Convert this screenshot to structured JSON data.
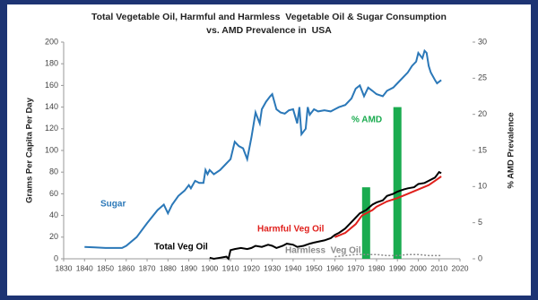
{
  "chart_data": {
    "type": "line",
    "title": "Total Vegetable Oil, Harmful and Harmless  Vegetable Oil & Sugar Consumption",
    "subtitle": "vs. AMD Prevalence in  USA",
    "y_label": "Grams Per Capita Per Day",
    "y2_label": "% AMD Prevalence",
    "xlim": [
      1830,
      2020
    ],
    "xticks": [
      1830,
      1840,
      1850,
      1860,
      1870,
      1880,
      1890,
      1900,
      1910,
      1920,
      1930,
      1940,
      1950,
      1960,
      1970,
      1980,
      1990,
      2000,
      2010,
      2020
    ],
    "ylim": [
      0,
      200
    ],
    "yticks": [
      0,
      20,
      40,
      60,
      80,
      100,
      120,
      140,
      160,
      180,
      200
    ],
    "y2lim": [
      0,
      30
    ],
    "y2ticks": [
      0,
      5,
      10,
      15,
      20,
      25,
      30
    ],
    "series": [
      {
        "name": "Sugar",
        "color": "#2b78b8",
        "x": [
          1840,
          1845,
          1850,
          1855,
          1858,
          1860,
          1865,
          1870,
          1875,
          1878,
          1880,
          1882,
          1885,
          1888,
          1890,
          1891,
          1893,
          1895,
          1897,
          1898,
          1899,
          1900,
          1902,
          1905,
          1908,
          1910,
          1912,
          1914,
          1916,
          1918,
          1920,
          1922,
          1924,
          1925,
          1927,
          1929,
          1930,
          1932,
          1934,
          1936,
          1938,
          1940,
          1942,
          1943,
          1944,
          1946,
          1947,
          1948,
          1950,
          1952,
          1955,
          1958,
          1960,
          1962,
          1965,
          1968,
          1970,
          1972,
          1974,
          1976,
          1978,
          1980,
          1983,
          1985,
          1988,
          1990,
          1993,
          1995,
          1997,
          1999,
          2000,
          2002,
          2003,
          2004,
          2005,
          2006,
          2008,
          2009,
          2011
        ],
        "values": [
          11,
          10.5,
          10,
          10,
          10,
          12,
          20,
          33,
          45,
          50,
          42,
          50,
          58,
          63,
          68,
          65,
          72,
          70,
          70,
          82,
          78,
          82,
          78,
          82,
          88,
          92,
          108,
          104,
          102,
          92,
          112,
          135,
          125,
          138,
          145,
          150,
          152,
          138,
          135,
          134,
          137,
          138,
          125,
          140,
          115,
          120,
          140,
          133,
          138,
          136,
          137,
          136,
          138,
          140,
          142,
          148,
          157,
          160,
          150,
          158,
          155,
          152,
          150,
          155,
          158,
          162,
          168,
          172,
          178,
          182,
          190,
          185,
          192,
          190,
          178,
          172,
          165,
          162,
          165
        ]
      },
      {
        "name": "Total Veg Oil",
        "color": "#000000",
        "x": [
          1900,
          1902,
          1905,
          1908,
          1909,
          1910,
          1912,
          1915,
          1918,
          1920,
          1922,
          1925,
          1928,
          1930,
          1932,
          1935,
          1937,
          1940,
          1942,
          1945,
          1948,
          1950,
          1955,
          1958,
          1960,
          1962,
          1965,
          1968,
          1970,
          1972,
          1975,
          1978,
          1980,
          1983,
          1985,
          1988,
          1990,
          1993,
          1995,
          1998,
          2000,
          2003,
          2005,
          2008,
          2010,
          2011
        ],
        "values": [
          1,
          0,
          1,
          2,
          0,
          8,
          9,
          10,
          9,
          10,
          12,
          11,
          13,
          12,
          10,
          12,
          14,
          13,
          11,
          12,
          14,
          15,
          17,
          19,
          22,
          24,
          28,
          34,
          38,
          42,
          45,
          50,
          52,
          54,
          58,
          60,
          62,
          64,
          65,
          66,
          69,
          70,
          72,
          75,
          80,
          79
        ]
      },
      {
        "name": "Harmful Veg Oil",
        "color": "#e0201c",
        "x": [
          1960,
          1965,
          1970,
          1973,
          1975,
          1978,
          1980,
          1985,
          1990,
          1995,
          2000,
          2005,
          2008,
          2011
        ],
        "values": [
          20,
          24,
          32,
          40,
          42,
          45,
          48,
          53,
          56,
          60,
          64,
          68,
          72,
          76
        ]
      },
      {
        "name": "Harmless  Veg Oil",
        "color": "#8c8c8c",
        "dashed": true,
        "x": [
          1960,
          1965,
          1970,
          1975,
          1980,
          1985,
          1990,
          1995,
          2000,
          2005,
          2011
        ],
        "values": [
          2,
          3,
          4,
          4,
          4,
          3,
          3,
          4,
          4,
          3,
          3
        ]
      },
      {
        "name": "% AMD",
        "color": "#1aab4f",
        "type": "bar",
        "axis": "y2",
        "x": [
          1975,
          1990
        ],
        "values": [
          9.9,
          21
        ]
      }
    ]
  }
}
